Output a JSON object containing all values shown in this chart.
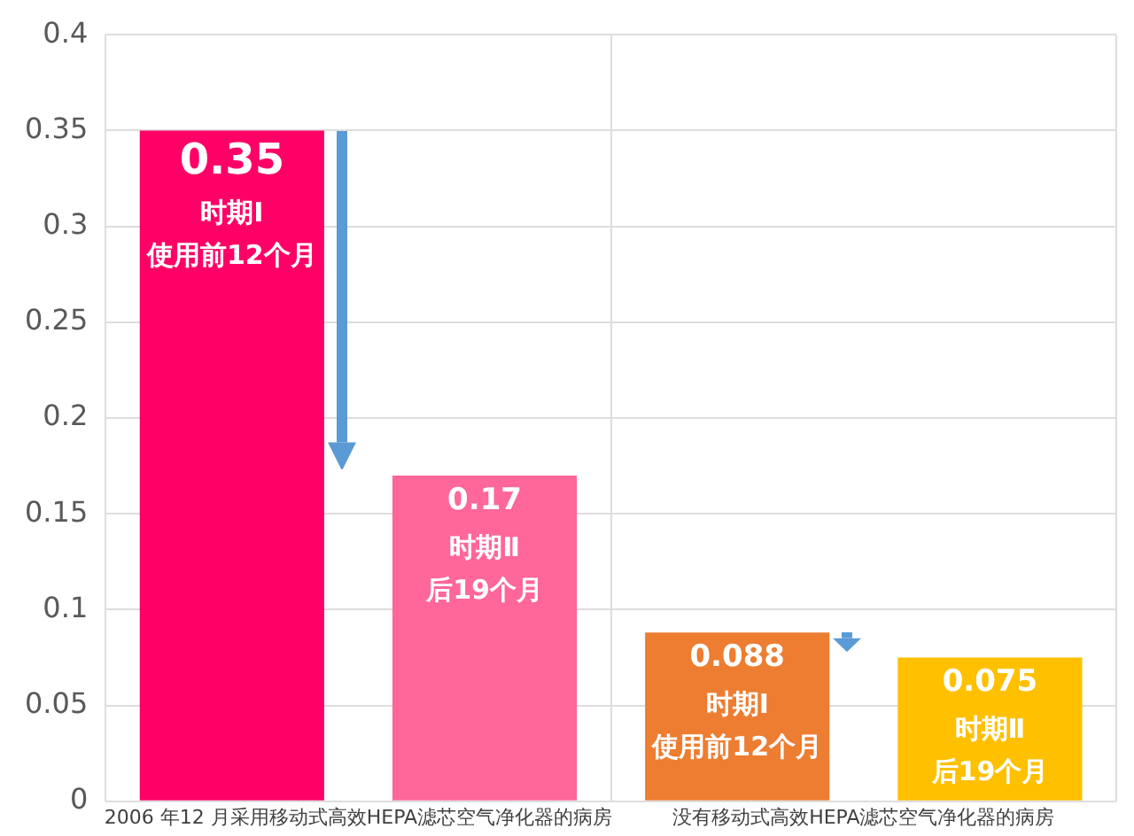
{
  "chart_data": {
    "type": "bar",
    "categories": [
      "2006 年12 月采用移动式高效HEPA滤芯空气净化器的病房",
      "没有移动式高效HEPA滤芯空气净化器的病房"
    ],
    "series": [
      {
        "name": "时期Ⅰ",
        "colors": [
          "#ff0066",
          "#ed7d31"
        ],
        "values": [
          0.35,
          0.088
        ]
      },
      {
        "name": "时期Ⅱ",
        "colors": [
          "#ff6699",
          "#ffc000"
        ],
        "values": [
          0.17,
          0.075
        ]
      }
    ],
    "annotations": [
      "使用前12个月",
      "使用前12个月",
      "后19个月",
      "后19个月"
    ],
    "ylim": [
      0,
      0.4
    ],
    "yticks": [
      0,
      0.05,
      0.1,
      0.15,
      0.2,
      0.25,
      0.3,
      0.35,
      0.4
    ],
    "grid": true,
    "data_labels": true,
    "legend": false
  }
}
